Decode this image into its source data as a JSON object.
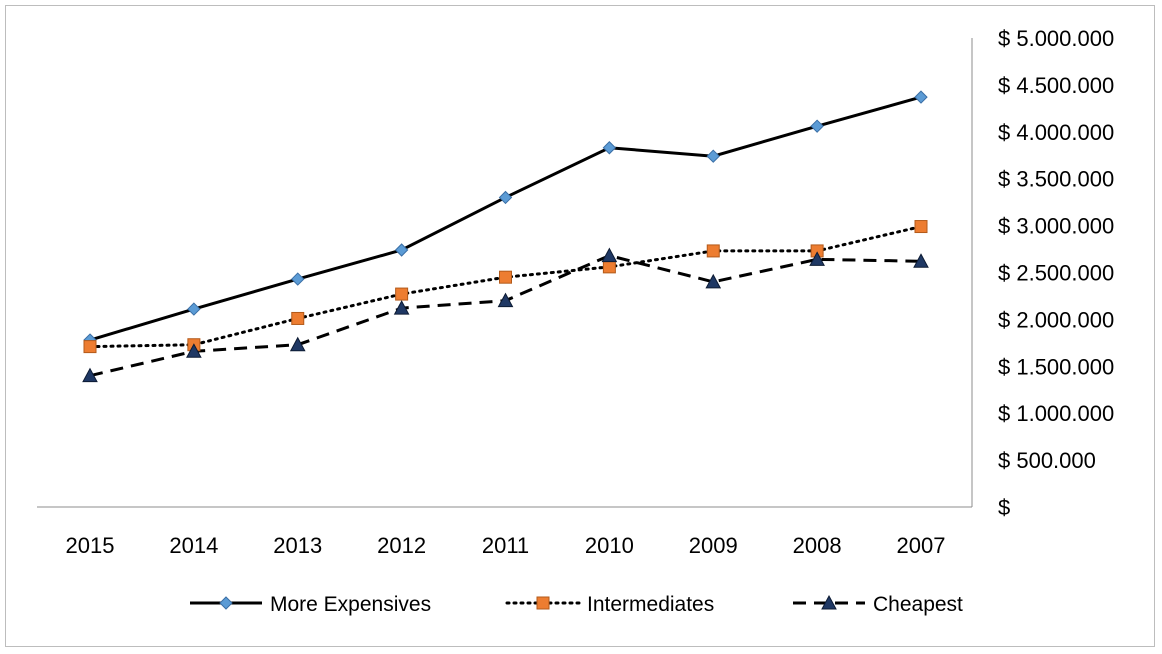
{
  "chart_data": {
    "type": "line",
    "title": "",
    "xlabel": "",
    "ylabel": "",
    "categories": [
      "2015",
      "2014",
      "2013",
      "2012",
      "2011",
      "2010",
      "2009",
      "2008",
      "2007"
    ],
    "y_axis_side": "right",
    "ylim": [
      0,
      5000000
    ],
    "y_tick_values": [
      0,
      500000,
      1000000,
      1500000,
      2000000,
      2500000,
      3000000,
      3500000,
      4000000,
      4500000,
      5000000
    ],
    "y_tick_labels": [
      "$",
      "$ 500.000",
      "$ 1.000.000",
      "$ 1.500.000",
      "$ 2.000.000",
      "$ 2.500.000",
      "$ 3.000.000",
      "$ 3.500.000",
      "$ 4.000.000",
      "$ 4.500.000",
      "$ 5.000.000"
    ],
    "grid": false,
    "legend_position": "bottom",
    "series": [
      {
        "name": "More Expensives",
        "line_style": "solid",
        "marker": "diamond",
        "line_color": "#000000",
        "marker_color": "#5b9bd5",
        "values": [
          1780000,
          2110000,
          2430000,
          2740000,
          3300000,
          3830000,
          3740000,
          4060000,
          4370000
        ]
      },
      {
        "name": "Intermediates",
        "line_style": "dotted",
        "marker": "square",
        "line_color": "#000000",
        "marker_color": "#ed7d31",
        "values": [
          1710000,
          1730000,
          2010000,
          2270000,
          2450000,
          2560000,
          2730000,
          2730000,
          2990000
        ]
      },
      {
        "name": "Cheapest",
        "line_style": "dashed",
        "marker": "triangle",
        "line_color": "#000000",
        "marker_color": "#1f3864",
        "values": [
          1400000,
          1660000,
          1730000,
          2120000,
          2200000,
          2680000,
          2400000,
          2640000,
          2620000
        ]
      }
    ]
  }
}
